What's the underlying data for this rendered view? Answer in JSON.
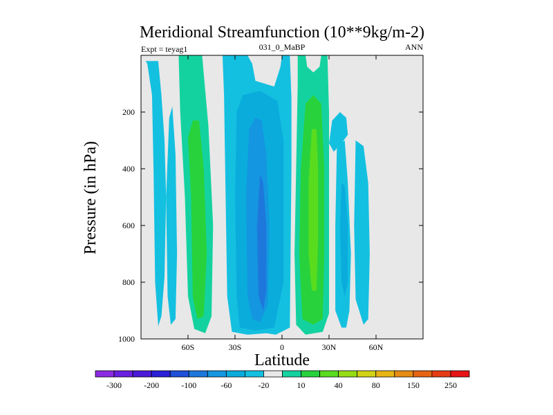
{
  "chart_data": {
    "type": "heatmap",
    "title": "Meridional Streamfunction (10**9kg/m-2)",
    "subtitle_left": "Expt = teyag1",
    "subtitle_center": "031_0_MaBP",
    "subtitle_right": "ANN",
    "xlabel": "Latitude",
    "ylabel": "Pressure (in hPa)",
    "xlim": [
      -90,
      90
    ],
    "ylim": [
      1000,
      0
    ],
    "x_ticks": [
      {
        "value": -60,
        "label": "60S"
      },
      {
        "value": -30,
        "label": "30S"
      },
      {
        "value": 0,
        "label": "0"
      },
      {
        "value": 30,
        "label": "30N"
      },
      {
        "value": 60,
        "label": "60N"
      }
    ],
    "y_ticks": [
      {
        "value": 200,
        "label": "200"
      },
      {
        "value": 400,
        "label": "400"
      },
      {
        "value": 600,
        "label": "600"
      },
      {
        "value": 800,
        "label": "800"
      },
      {
        "value": 1000,
        "label": "1000"
      }
    ],
    "background_color": "#e8e8e8",
    "colorbar": {
      "colors": [
        "#8a2be2",
        "#6a1fe0",
        "#4b18d8",
        "#2a20d8",
        "#1e50d8",
        "#1e78dc",
        "#1496e0",
        "#0aacdc",
        "#14c0e0",
        "#e8e8e8",
        "#14d2a0",
        "#28d23c",
        "#5adc1e",
        "#96dc14",
        "#d2d214",
        "#e6b414",
        "#e68c14",
        "#e66414",
        "#e63c14",
        "#e61414"
      ],
      "labels": [
        "-300",
        "-200",
        "-100",
        "-60",
        "-20",
        "10",
        "40",
        "80",
        "150",
        "250"
      ]
    },
    "contour_regions": [
      {
        "name": "sh-polar-cell-outer",
        "level": -10,
        "color": "#14c0e0",
        "points": [
          [
            -86,
            30
          ],
          [
            -83,
            140
          ],
          [
            -82,
            400
          ],
          [
            -81,
            800
          ],
          [
            -79,
            955
          ],
          [
            -77,
            920
          ],
          [
            -75,
            780
          ],
          [
            -74,
            500
          ],
          [
            -75,
            300
          ],
          [
            -77,
            140
          ],
          [
            -79,
            20
          ],
          [
            -87,
            20
          ]
        ]
      },
      {
        "name": "sh-polar-cell-inner",
        "level": -10,
        "color": "#14c0e0",
        "points": [
          [
            -72,
            220
          ],
          [
            -74,
            500
          ],
          [
            -73,
            850
          ],
          [
            -71,
            950
          ],
          [
            -68,
            930
          ],
          [
            -67,
            700
          ],
          [
            -68,
            350
          ],
          [
            -70,
            180
          ]
        ]
      },
      {
        "name": "sh-ferrel-cell-outer",
        "level": 10,
        "color": "#14d2a0",
        "points": [
          [
            -66,
            0
          ],
          [
            -65,
            200
          ],
          [
            -62,
            500
          ],
          [
            -60,
            850
          ],
          [
            -56,
            965
          ],
          [
            -49,
            980
          ],
          [
            -45,
            920
          ],
          [
            -44,
            600
          ],
          [
            -47,
            250
          ],
          [
            -51,
            0
          ]
        ]
      },
      {
        "name": "sh-ferrel-cell-inner",
        "level": 40,
        "color": "#28d23c",
        "points": [
          [
            -60,
            290
          ],
          [
            -58,
            500
          ],
          [
            -57,
            850
          ],
          [
            -54,
            930
          ],
          [
            -50,
            920
          ],
          [
            -48,
            700
          ],
          [
            -50,
            400
          ],
          [
            -53,
            230
          ],
          [
            -57,
            230
          ]
        ]
      },
      {
        "name": "sh-hadley-cell-outer",
        "level": -10,
        "color": "#14c0e0",
        "points": [
          [
            -38,
            0
          ],
          [
            -37,
            140
          ],
          [
            -36,
            500
          ],
          [
            -35,
            850
          ],
          [
            -32,
            975
          ],
          [
            -22,
            985
          ],
          [
            -10,
            980
          ],
          [
            -4,
            985
          ],
          [
            5,
            960
          ],
          [
            6,
            400
          ],
          [
            6,
            150
          ],
          [
            5,
            0
          ],
          [
            0,
            0
          ],
          [
            -1,
            40
          ],
          [
            -5,
            110
          ],
          [
            -17,
            90
          ],
          [
            -19,
            30
          ],
          [
            -22,
            0
          ]
        ]
      },
      {
        "name": "sh-hadley-cell-mid",
        "level": -20,
        "color": "#0aacdc",
        "points": [
          [
            -29,
            200
          ],
          [
            -30,
            500
          ],
          [
            -29,
            850
          ],
          [
            -27,
            960
          ],
          [
            -17,
            970
          ],
          [
            -5,
            960
          ],
          [
            1,
            800
          ],
          [
            1,
            300
          ],
          [
            -3,
            160
          ],
          [
            -14,
            125
          ],
          [
            -25,
            140
          ]
        ]
      },
      {
        "name": "sh-hadley-cell-inner",
        "level": -60,
        "color": "#1496e0",
        "points": [
          [
            -21,
            260
          ],
          [
            -23,
            500
          ],
          [
            -22,
            850
          ],
          [
            -19,
            930
          ],
          [
            -14,
            940
          ],
          [
            -9,
            880
          ],
          [
            -8,
            600
          ],
          [
            -10,
            350
          ],
          [
            -13,
            230
          ],
          [
            -17,
            220
          ]
        ]
      },
      {
        "name": "sh-hadley-cell-core",
        "level": -100,
        "color": "#1e78dc",
        "points": [
          [
            -14,
            420
          ],
          [
            -16,
            600
          ],
          [
            -15,
            850
          ],
          [
            -12,
            900
          ],
          [
            -10,
            830
          ],
          [
            -10,
            600
          ],
          [
            -12,
            450
          ]
        ]
      },
      {
        "name": "nh-hadley-cell-outer",
        "level": 10,
        "color": "#14d2a0",
        "points": [
          [
            10,
            0
          ],
          [
            10,
            100
          ],
          [
            9,
            400
          ],
          [
            8,
            700
          ],
          [
            9,
            950
          ],
          [
            15,
            985
          ],
          [
            26,
            975
          ],
          [
            30,
            910
          ],
          [
            30,
            500
          ],
          [
            30,
            200
          ],
          [
            29,
            0
          ],
          [
            25,
            0
          ],
          [
            24,
            40
          ],
          [
            20,
            60
          ],
          [
            16,
            40
          ],
          [
            15,
            0
          ]
        ]
      },
      {
        "name": "nh-hadley-cell-inner",
        "level": 40,
        "color": "#28d23c",
        "points": [
          [
            15,
            170
          ],
          [
            12,
            400
          ],
          [
            11,
            700
          ],
          [
            13,
            930
          ],
          [
            20,
            950
          ],
          [
            26,
            930
          ],
          [
            27,
            700
          ],
          [
            27,
            400
          ],
          [
            25,
            170
          ],
          [
            20,
            140
          ]
        ]
      },
      {
        "name": "nh-hadley-cell-core",
        "level": 80,
        "color": "#5adc1e",
        "points": [
          [
            19,
            260
          ],
          [
            17,
            450
          ],
          [
            17,
            700
          ],
          [
            19,
            830
          ],
          [
            22,
            830
          ],
          [
            23,
            650
          ],
          [
            23,
            400
          ],
          [
            22,
            260
          ]
        ]
      },
      {
        "name": "nh-ferrel-cell-outer",
        "level": -10,
        "color": "#14c0e0",
        "points": [
          [
            35,
            330
          ],
          [
            34,
            600
          ],
          [
            34,
            900
          ],
          [
            38,
            960
          ],
          [
            41,
            960
          ],
          [
            43,
            900
          ],
          [
            44,
            700
          ],
          [
            42,
            450
          ],
          [
            40,
            300
          ],
          [
            37,
            310
          ]
        ]
      },
      {
        "name": "nh-ferrel-cell-upper",
        "level": -10,
        "color": "#14c0e0",
        "points": [
          [
            30,
            310
          ],
          [
            32,
            230
          ],
          [
            37,
            200
          ],
          [
            41,
            220
          ],
          [
            42,
            280
          ],
          [
            38,
            310
          ],
          [
            33,
            340
          ]
        ]
      },
      {
        "name": "nh-ferrel-cell-inner",
        "level": -20,
        "color": "#0aacdc",
        "points": [
          [
            38,
            450
          ],
          [
            37,
            600
          ],
          [
            38,
            800
          ],
          [
            40,
            850
          ],
          [
            42,
            800
          ],
          [
            42,
            600
          ],
          [
            40,
            460
          ]
        ]
      },
      {
        "name": "nh-polar-cell-outer",
        "level": -10,
        "color": "#14c0e0",
        "points": [
          [
            47,
            300
          ],
          [
            46,
            600
          ],
          [
            47,
            860
          ],
          [
            52,
            950
          ],
          [
            55,
            930
          ],
          [
            56,
            700
          ],
          [
            55,
            450
          ],
          [
            52,
            320
          ]
        ]
      }
    ]
  }
}
